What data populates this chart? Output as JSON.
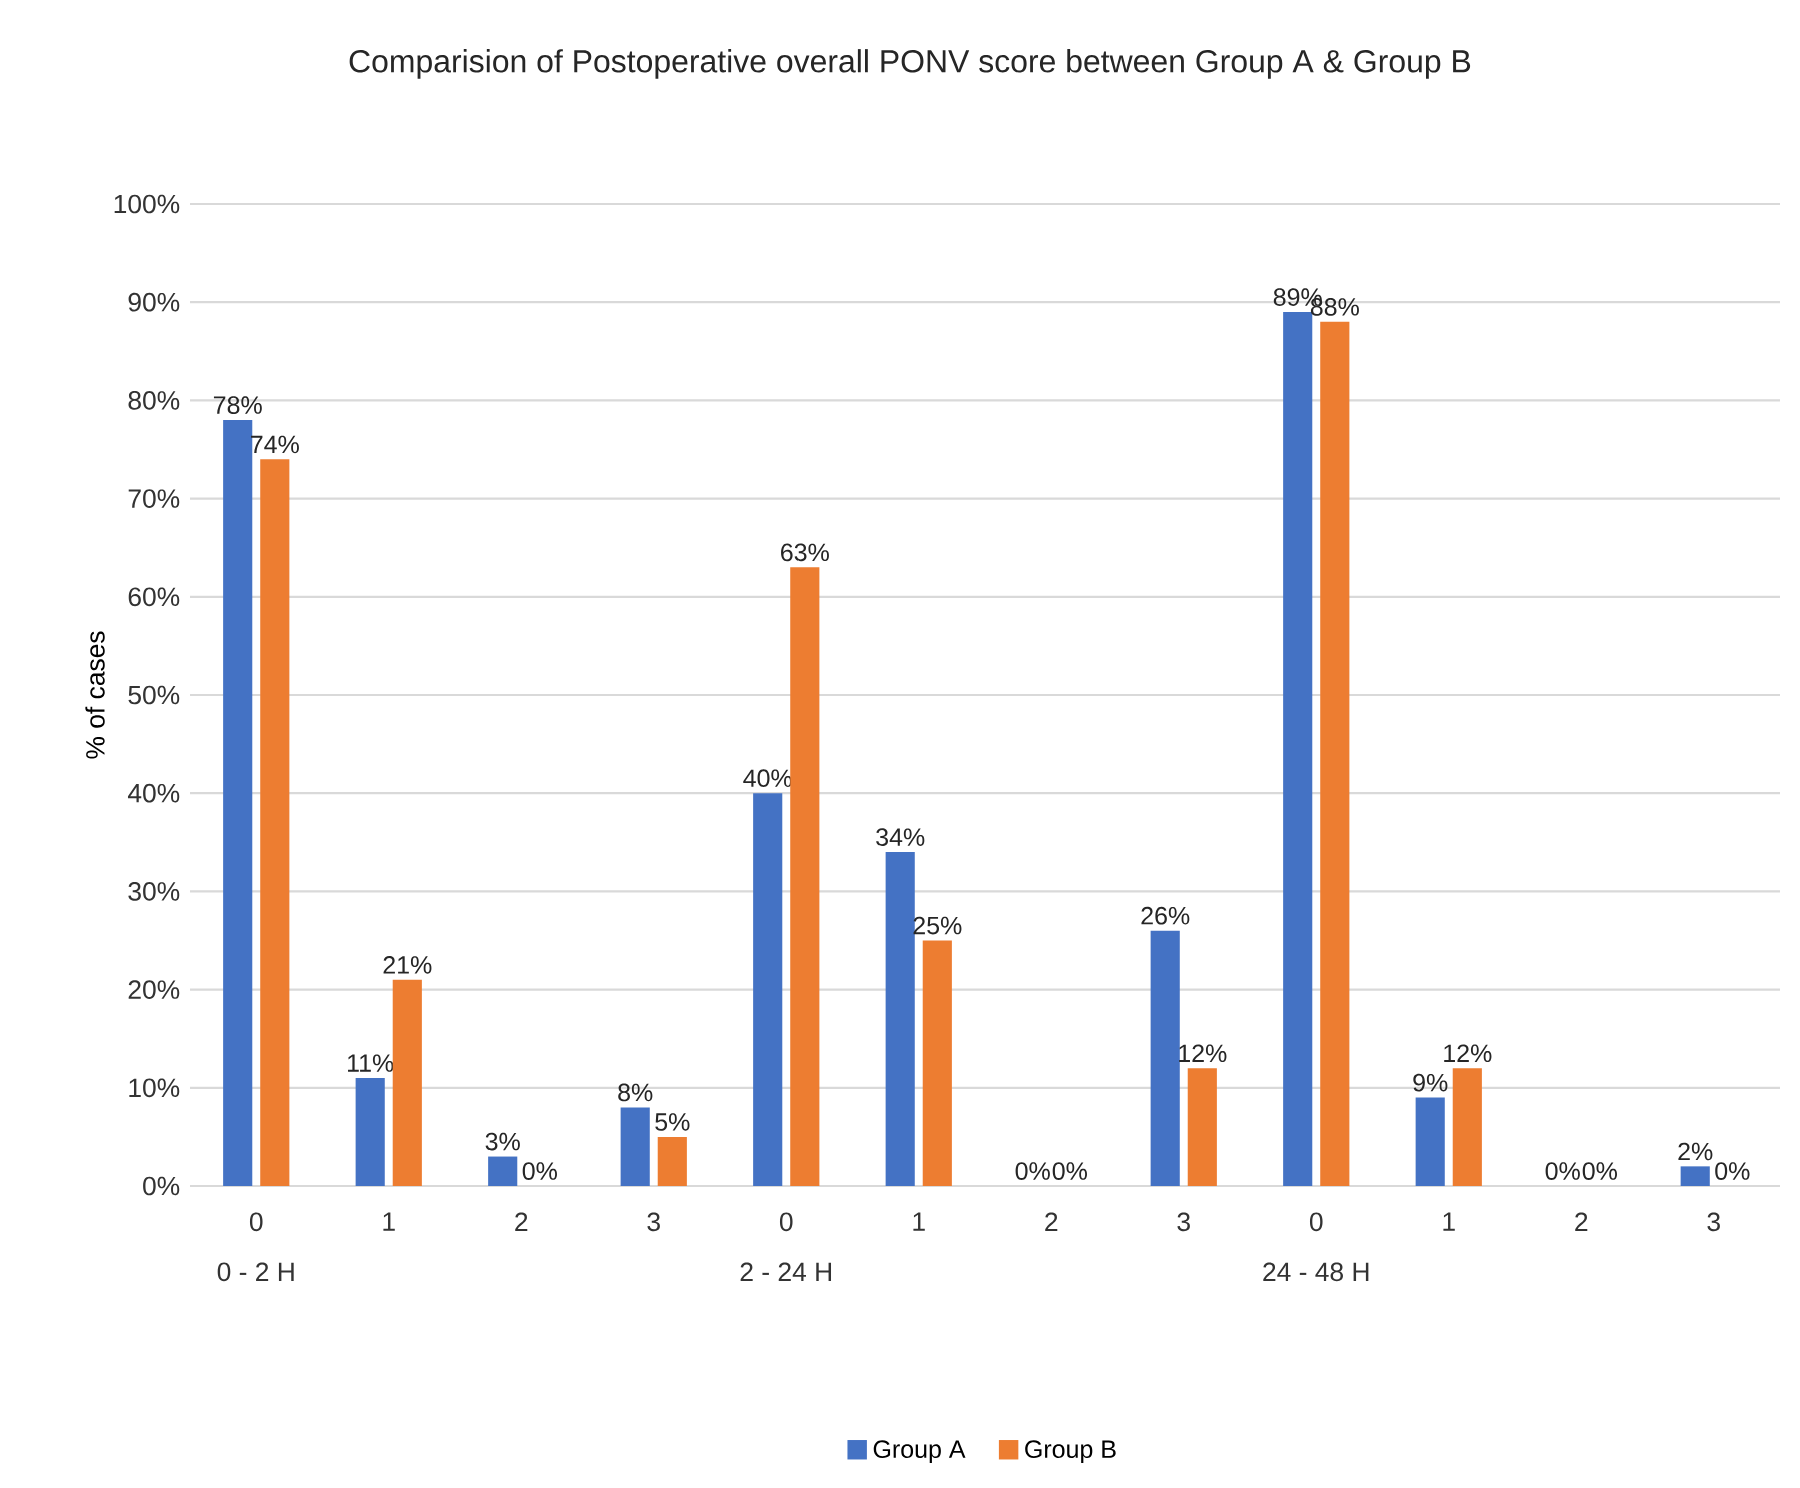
{
  "chart_data": {
    "type": "bar",
    "title": "Comparision of Postoperative overall PONV score between Group A & Group B",
    "ylabel": "% of cases",
    "categories": [
      "0",
      "1",
      "2",
      "3",
      "0",
      "1",
      "2",
      "3",
      "0",
      "1",
      "2",
      "3"
    ],
    "annotations": [
      "0 - 2 H",
      "2 - 24 H",
      "24 - 48 H"
    ],
    "series": [
      {
        "name": "Group A",
        "color": "#4472c4",
        "values": [
          78,
          11,
          3,
          8,
          40,
          34,
          0,
          26,
          89,
          9,
          0,
          2
        ],
        "value_labels": [
          "78%",
          "11%",
          "3%",
          "8%",
          "40%",
          "34%",
          "0%",
          "26%",
          "89%",
          "9%",
          "0%",
          "2%"
        ]
      },
      {
        "name": "Group B",
        "color": "#ed7d31",
        "values": [
          74,
          21,
          0,
          5,
          63,
          25,
          0,
          12,
          88,
          12,
          0,
          0
        ],
        "value_labels": [
          "74%",
          "21%",
          "0%",
          "5%",
          "63%",
          "25%",
          "0%",
          "12%",
          "88%",
          "12%",
          "0%",
          "0%"
        ]
      }
    ],
    "ylim": [
      0,
      100
    ],
    "yticks": [
      {
        "value": 0,
        "label": "0%"
      },
      {
        "value": 10,
        "label": "10%"
      },
      {
        "value": 20,
        "label": "20%"
      },
      {
        "value": 30,
        "label": "30%"
      },
      {
        "value": 40,
        "label": "40%"
      },
      {
        "value": 50,
        "label": "50%"
      },
      {
        "value": 60,
        "label": "60%"
      },
      {
        "value": 70,
        "label": "70%"
      },
      {
        "value": 80,
        "label": "80%"
      },
      {
        "value": 90,
        "label": "90%"
      },
      {
        "value": 100,
        "label": "100%"
      }
    ],
    "grid": "y",
    "legend": "bottom"
  }
}
